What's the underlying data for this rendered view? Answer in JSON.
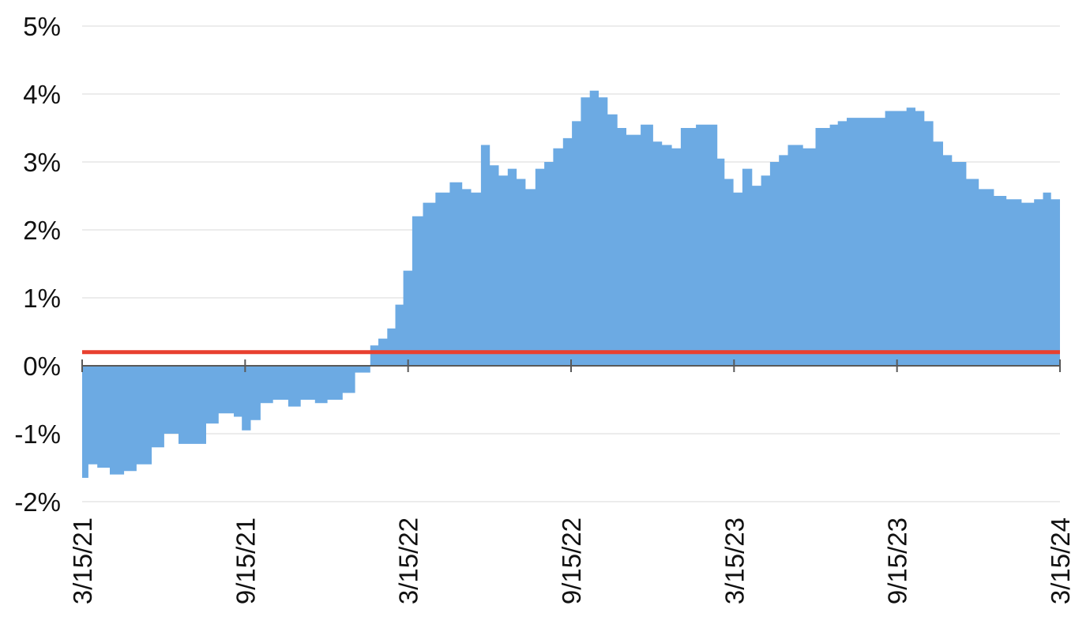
{
  "chart_data": {
    "type": "area",
    "title": "",
    "xlabel": "",
    "ylabel": "",
    "y_unit": "%",
    "ylim": [
      -2,
      5
    ],
    "y_ticks": [
      -2,
      -1,
      0,
      1,
      2,
      3,
      4,
      5
    ],
    "y_tick_labels": [
      "-2%",
      "-1%",
      "0%",
      "1%",
      "2%",
      "3%",
      "4%",
      "5%"
    ],
    "x_tick_labels": [
      "3/15/21",
      "9/15/21",
      "3/15/22",
      "9/15/22",
      "3/15/23",
      "9/15/23",
      "3/15/24"
    ],
    "xlim": [
      "2021-03-15",
      "2024-03-15"
    ],
    "grid": true,
    "legend": "none",
    "colors": {
      "area": "#6caae3",
      "reference": "#e8402f",
      "axis": "#595959",
      "grid": "#d9d9d9"
    },
    "reference_line": {
      "value": 0.2
    },
    "series": [
      {
        "x": [
          "2021-03-15",
          "2021-03-22",
          "2021-04-01",
          "2021-04-15",
          "2021-05-01",
          "2021-05-15",
          "2021-06-01",
          "2021-06-15",
          "2021-07-01",
          "2021-07-15",
          "2021-08-01",
          "2021-08-15",
          "2021-09-01",
          "2021-09-10",
          "2021-09-20",
          "2021-10-01",
          "2021-10-15",
          "2021-11-01",
          "2021-11-15",
          "2021-12-01",
          "2021-12-15",
          "2022-01-01",
          "2022-01-15",
          "2022-02-01",
          "2022-02-10",
          "2022-02-20",
          "2022-03-01",
          "2022-03-10",
          "2022-03-20",
          "2022-04-01",
          "2022-04-15",
          "2022-05-01",
          "2022-05-15",
          "2022-05-25",
          "2022-06-05",
          "2022-06-15",
          "2022-06-25",
          "2022-07-05",
          "2022-07-15",
          "2022-07-25",
          "2022-08-05",
          "2022-08-15",
          "2022-08-25",
          "2022-09-05",
          "2022-09-15",
          "2022-09-25",
          "2022-10-05",
          "2022-10-15",
          "2022-10-25",
          "2022-11-05",
          "2022-11-15",
          "2022-12-01",
          "2022-12-15",
          "2022-12-25",
          "2023-01-05",
          "2023-01-15",
          "2023-02-01",
          "2023-02-15",
          "2023-02-25",
          "2023-03-05",
          "2023-03-15",
          "2023-03-25",
          "2023-04-05",
          "2023-04-15",
          "2023-04-25",
          "2023-05-05",
          "2023-05-15",
          "2023-06-01",
          "2023-06-15",
          "2023-07-01",
          "2023-07-10",
          "2023-07-20",
          "2023-08-01",
          "2023-08-15",
          "2023-09-01",
          "2023-09-15",
          "2023-09-25",
          "2023-10-05",
          "2023-10-15",
          "2023-10-25",
          "2023-11-05",
          "2023-11-15",
          "2023-12-01",
          "2023-12-15",
          "2024-01-01",
          "2024-01-15",
          "2024-02-01",
          "2024-02-15",
          "2024-02-25",
          "2024-03-05",
          "2024-03-15"
        ],
        "y": [
          -1.65,
          -1.45,
          -1.5,
          -1.6,
          -1.55,
          -1.45,
          -1.2,
          -1.0,
          -1.15,
          -1.15,
          -0.85,
          -0.7,
          -0.75,
          -0.95,
          -0.8,
          -0.55,
          -0.5,
          -0.6,
          -0.5,
          -0.55,
          -0.5,
          -0.4,
          -0.1,
          0.3,
          0.4,
          0.55,
          0.9,
          1.4,
          2.2,
          2.4,
          2.55,
          2.7,
          2.6,
          2.55,
          3.25,
          2.95,
          2.8,
          2.9,
          2.75,
          2.6,
          2.9,
          3.0,
          3.2,
          3.35,
          3.6,
          3.95,
          4.05,
          3.95,
          3.7,
          3.5,
          3.4,
          3.55,
          3.3,
          3.25,
          3.2,
          3.5,
          3.55,
          3.55,
          3.05,
          2.75,
          2.55,
          2.9,
          2.65,
          2.8,
          3.0,
          3.1,
          3.25,
          3.2,
          3.5,
          3.55,
          3.6,
          3.65,
          3.65,
          3.65,
          3.75,
          3.75,
          3.8,
          3.75,
          3.6,
          3.3,
          3.1,
          3.0,
          2.75,
          2.6,
          2.5,
          2.45,
          2.4,
          2.45,
          2.55,
          2.45,
          2.1
        ]
      }
    ]
  }
}
